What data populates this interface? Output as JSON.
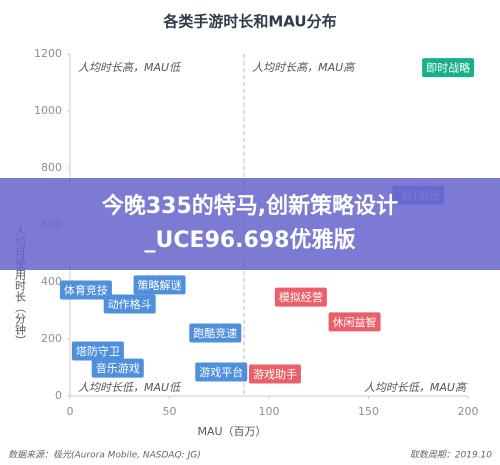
{
  "chart_data": {
    "type": "scatter",
    "title": "各类手游时长和MAU分布",
    "xlabel": "MAU（百万）",
    "ylabel": "人均月使用时长（分钟）",
    "point_labels": [
      "即时战略",
      "飞行射击",
      "体育竞技",
      "策略解谜",
      "动作格斗",
      "跑酷竞速",
      "塔防守卫",
      "音乐游戏",
      "游戏平台",
      "游戏助手",
      "模拟经营",
      "休闲益智"
    ],
    "x": [
      190,
      175,
      8,
      45,
      30,
      73,
      14,
      24,
      76,
      103,
      116,
      143
    ],
    "values": [
      1152,
      705,
      372,
      390,
      323,
      221,
      158,
      98,
      84,
      77,
      347,
      260
    ],
    "colors": [
      "#17b08a",
      "#4f8fdb",
      "#4f8fdb",
      "#4f8fdb",
      "#4f8fdb",
      "#4f8fdb",
      "#4f8fdb",
      "#4f8fdb",
      "#4f8fdb",
      "#ea5f6a",
      "#ea5f6a",
      "#ea5f6a"
    ],
    "xlim": [
      0,
      200
    ],
    "ylim": [
      0,
      1200
    ],
    "xticks": [
      0,
      50,
      100,
      150,
      200
    ],
    "yticks": [
      0,
      200,
      400,
      600,
      800,
      1000,
      1200
    ],
    "divider_x": 87.5,
    "quadrant_labels": [
      "人均时长高，MAU低",
      "人均时长高，MAU高",
      "人均时长低，MAU低",
      "人均时长低，MAU高"
    ],
    "source": "数据来源：极光(Aurora Mobile, NASDAQ: JG)",
    "period": "取数周期：2019.10"
  },
  "banner": {
    "text": "今晚335的特马,创新策略设计_UCE96.698优雅版"
  }
}
